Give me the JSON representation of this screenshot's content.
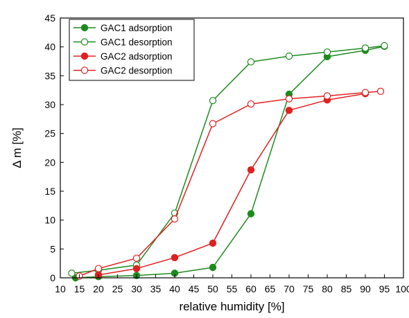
{
  "chart_data": {
    "type": "line",
    "xlabel": "relative humidity [%]",
    "ylabel": "Δ m [%]",
    "xlim": [
      10,
      100
    ],
    "ylim": [
      0,
      45
    ],
    "xticks": [
      10,
      15,
      20,
      25,
      30,
      35,
      40,
      45,
      50,
      55,
      60,
      65,
      70,
      75,
      80,
      85,
      90,
      95,
      100
    ],
    "yticks": [
      0,
      5,
      10,
      15,
      20,
      25,
      30,
      35,
      40,
      45
    ],
    "grid": false,
    "legend_position": "top-left",
    "series": [
      {
        "name": "GAC1 adsorption",
        "color": "#1e8a1e",
        "marker": "filled-circle",
        "x": [
          14,
          20,
          30,
          40,
          50,
          60,
          70,
          80,
          90,
          95
        ],
        "y": [
          0.0,
          0.2,
          0.4,
          0.8,
          1.8,
          11.1,
          31.8,
          38.3,
          39.4,
          40.1
        ]
      },
      {
        "name": "GAC1 desorption",
        "color": "#1e8a1e",
        "marker": "open-circle",
        "x": [
          13,
          20,
          30,
          40,
          50,
          60,
          70,
          80,
          90,
          95
        ],
        "y": [
          0.8,
          1.3,
          2.2,
          11.2,
          30.7,
          37.4,
          38.4,
          39.1,
          39.8,
          40.2
        ]
      },
      {
        "name": "GAC2 adsorption",
        "color": "#e02020",
        "marker": "filled-circle",
        "x": [
          20,
          30,
          40,
          50,
          60,
          70,
          80,
          90
        ],
        "y": [
          0.5,
          1.6,
          3.5,
          6.0,
          18.7,
          29.0,
          30.8,
          31.9
        ]
      },
      {
        "name": "GAC2 desorption",
        "color": "#e02020",
        "marker": "open-circle",
        "x": [
          15,
          20,
          30,
          40,
          50,
          60,
          70,
          80,
          90,
          94
        ],
        "y": [
          0.3,
          1.6,
          3.4,
          10.2,
          26.7,
          30.1,
          31.0,
          31.5,
          32.1,
          32.3
        ]
      }
    ]
  }
}
